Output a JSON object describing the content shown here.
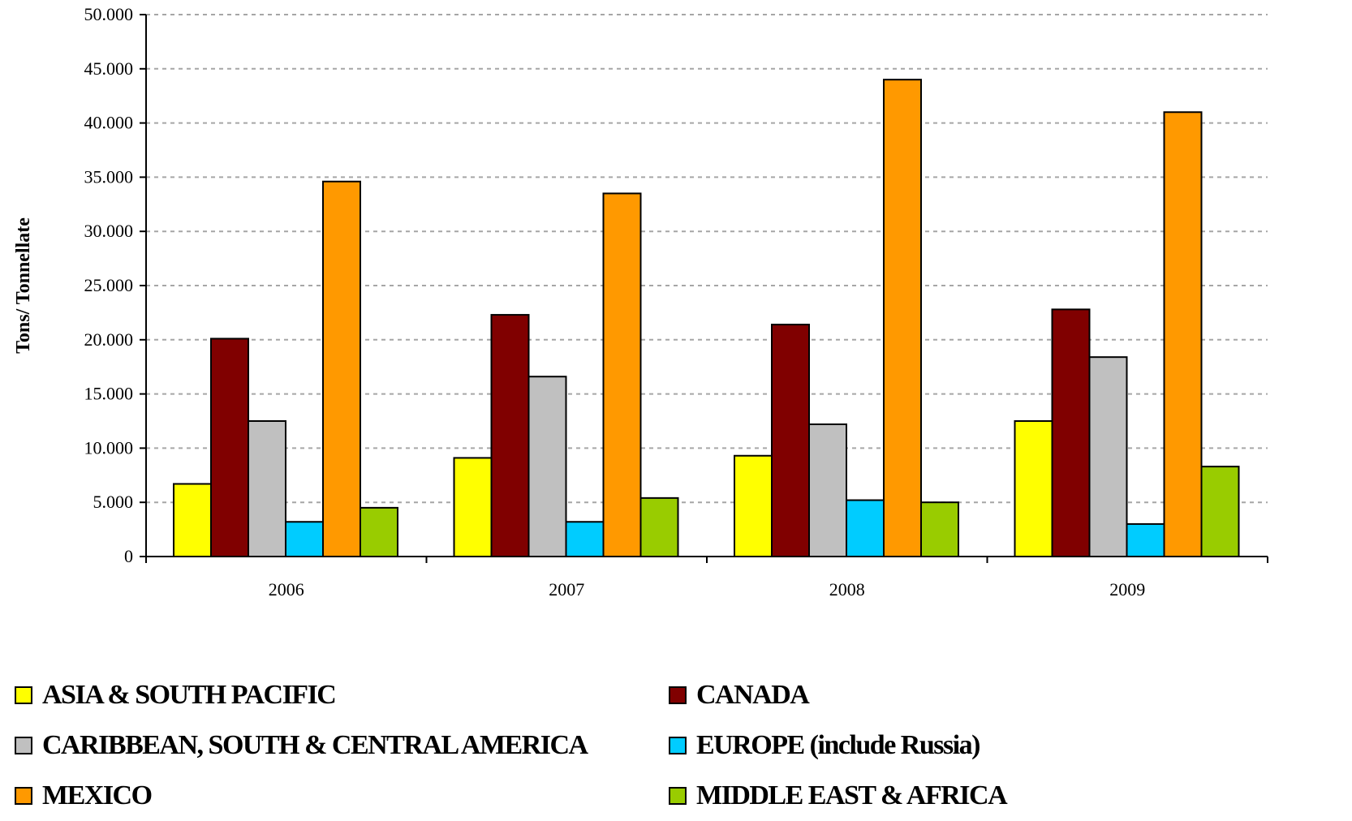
{
  "chart_data": {
    "type": "bar",
    "title": "",
    "xlabel": "",
    "ylabel": "Tons/ Tonnellate",
    "ylim": [
      0,
      50000
    ],
    "yticks": [
      0,
      5000,
      10000,
      15000,
      20000,
      25000,
      30000,
      35000,
      40000,
      45000,
      50000
    ],
    "ytick_labels": [
      "0",
      "5.000",
      "10.000",
      "15.000",
      "20.000",
      "25.000",
      "30.000",
      "35.000",
      "40.000",
      "45.000",
      "50.000"
    ],
    "grid": true,
    "legend_position": "bottom",
    "categories": [
      "2006",
      "2007",
      "2008",
      "2009"
    ],
    "series": [
      {
        "name": "ASIA & SOUTH PACIFIC",
        "color": "#ffff00",
        "values": [
          6700,
          9100,
          9300,
          12500
        ]
      },
      {
        "name": "CANADA",
        "color": "#800000",
        "values": [
          20100,
          22300,
          21400,
          22800
        ]
      },
      {
        "name": "CARIBBEAN, SOUTH & CENTRAL AMERICA",
        "color": "#c0c0c0",
        "values": [
          12500,
          16600,
          12200,
          18400
        ]
      },
      {
        "name": "EUROPE (include Russia)",
        "color": "#00ccff",
        "values": [
          3200,
          3200,
          5200,
          3000
        ]
      },
      {
        "name": "MEXICO",
        "color": "#ff9900",
        "values": [
          34600,
          33500,
          44000,
          41000
        ]
      },
      {
        "name": "MIDDLE EAST & AFRICA",
        "color": "#99cc00",
        "values": [
          4500,
          5400,
          5000,
          8300
        ]
      }
    ]
  }
}
